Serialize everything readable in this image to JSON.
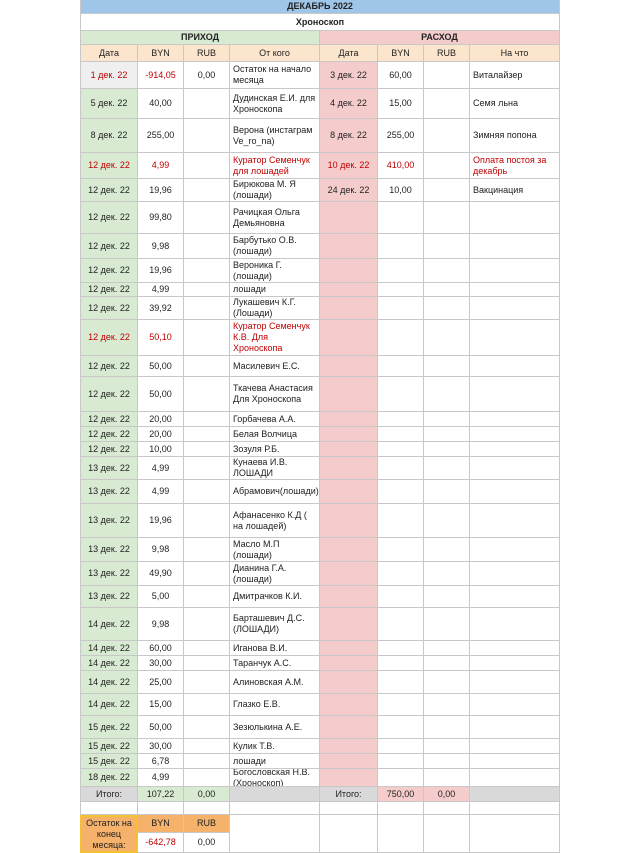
{
  "header": {
    "title": "ДЕКАБРЬ 2022",
    "subtitle": "Хроноскоп",
    "income": "ПРИХОД",
    "expense": "РАСХОД",
    "columns": [
      "Дата",
      "BYN",
      "RUB",
      "От кого",
      "Дата",
      "BYN",
      "RUB",
      "На что"
    ]
  },
  "income": [
    {
      "date": "1 дек. 22",
      "byn": "-914,05",
      "rub": "0,00",
      "from": "Остаток на начало месяца",
      "color": "#c00000"
    },
    {
      "date": "5 дек. 22",
      "byn": "40,00",
      "from": "Дудинская Е.И. для Хроноскопа"
    },
    {
      "date": "8 дек. 22",
      "byn": "255,00",
      "from": "Верона (инстаграм Ve_ro_na)"
    },
    {
      "date": "12 дек. 22",
      "byn": "4,99",
      "from": "Куратор Семенчук для лошадей",
      "color": "#c00000"
    },
    {
      "date": "12 дек. 22",
      "byn": "19,96",
      "from": "Бирюкова М. Я (лошади)"
    },
    {
      "date": "12 дек. 22",
      "byn": "99,80",
      "from": "Рачицкая Ольга Демьяновна"
    },
    {
      "date": "12 дек. 22",
      "byn": "9,98",
      "from": "Барбутько О.В. (лошади)"
    },
    {
      "date": "12 дек. 22",
      "byn": "19,96",
      "from": "Вероника Г. (лошади)"
    },
    {
      "date": "12 дек. 22",
      "byn": "4,99",
      "from": "лошади"
    },
    {
      "date": "12 дек. 22",
      "byn": "39,92",
      "from": "Лукашевич К.Г. (Лошади)"
    },
    {
      "date": "12 дек. 22",
      "byn": "50,10",
      "from": "Куратор Семенчук К.В. Для Хроноскопа",
      "color": "#c00000"
    },
    {
      "date": "12 дек. 22",
      "byn": "50,00",
      "from": "Масилевич Е.С."
    },
    {
      "date": "12 дек. 22",
      "byn": "50,00",
      "from": "Ткачева Анастасия Для Хроноскопа"
    },
    {
      "date": "12 дек. 22",
      "byn": "20,00",
      "from": "Горбачева А.А."
    },
    {
      "date": "12 дек. 22",
      "byn": "20,00",
      "from": "Белая Волчица"
    },
    {
      "date": "12 дек. 22",
      "byn": "10,00",
      "from": "Зозуля Р.Б."
    },
    {
      "date": "13 дек. 22",
      "byn": "4,99",
      "from": "Кунаева И.В. ЛОШАДИ"
    },
    {
      "date": "13 дек. 22",
      "byn": "4,99",
      "from": "Абрамович(лошади)"
    },
    {
      "date": "13 дек. 22",
      "byn": "19,96",
      "from": "Афанасенко К.Д ( на лошадей)"
    },
    {
      "date": "13 дек. 22",
      "byn": "9,98",
      "from": "Масло М.П (лошади)"
    },
    {
      "date": "13 дек. 22",
      "byn": "49,90",
      "from": "Дианина Г.А. (лошади)"
    },
    {
      "date": "13 дек. 22",
      "byn": "5,00",
      "from": "Дмитрачков К.И."
    },
    {
      "date": "14 дек. 22",
      "byn": "9,98",
      "from": "Барташевич Д.С. (ЛОШАДИ)"
    },
    {
      "date": "14 дек. 22",
      "byn": "60,00",
      "from": "Иганова В.И."
    },
    {
      "date": "14 дек. 22",
      "byn": "30,00",
      "from": "Таранчук А.С."
    },
    {
      "date": "14 дек. 22",
      "byn": "25,00",
      "from": "Алиновская А.М."
    },
    {
      "date": "14 дек. 22",
      "byn": "15,00",
      "from": "Глазко Е.В."
    },
    {
      "date": "15 дек. 22",
      "byn": "50,00",
      "from": "Зезюлькина А.Е."
    },
    {
      "date": "15 дек. 22",
      "byn": "30,00",
      "from": "Кулик Т.В."
    },
    {
      "date": "15 дек. 22",
      "byn": "6,78",
      "from": "лошади"
    },
    {
      "date": "18 дек. 22",
      "byn": "4,99",
      "from": "Богословская Н.В. (Хроноскоп)"
    }
  ],
  "expense": [
    {
      "date": "3 дек. 22",
      "byn": "60,00",
      "what": "Виталайзер"
    },
    {
      "date": "4 дек. 22",
      "byn": "15,00",
      "what": "Семя льна"
    },
    {
      "date": "8 дек. 22",
      "byn": "255,00",
      "what": "Зимняя попона"
    },
    {
      "date": "10 дек. 22",
      "byn": "410,00",
      "what": "Оплата постоя за декабрь",
      "color": "#c00000"
    },
    {
      "date": "24 дек. 22",
      "byn": "10,00",
      "what": "Вакцинация"
    }
  ],
  "totals": {
    "income": {
      "label": "Итого:",
      "byn": "107,22",
      "rub": "0,00"
    },
    "expense": {
      "label": "Итого:",
      "byn": "750,00",
      "rub": "0,00"
    }
  },
  "balance": {
    "label": "Остаток на конец месяца:",
    "columns": [
      "BYN",
      "RUB"
    ],
    "byn": "-642,78",
    "rub": "0,00"
  }
}
